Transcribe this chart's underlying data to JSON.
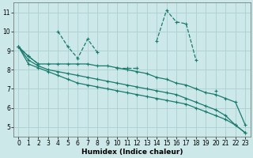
{
  "xlabel": "Humidex (Indice chaleur)",
  "background_color": "#cce8e8",
  "grid_color": "#aad0d0",
  "line_color": "#1a7a6e",
  "x_data": [
    0,
    1,
    2,
    3,
    4,
    5,
    6,
    7,
    8,
    9,
    10,
    11,
    12,
    13,
    14,
    15,
    16,
    17,
    18,
    19,
    20,
    21,
    22,
    23
  ],
  "series": [
    {
      "y": [
        9.2,
        8.7,
        8.3,
        null,
        10.0,
        9.2,
        8.6,
        9.6,
        8.9,
        null,
        8.1,
        8.1,
        8.1,
        null,
        9.5,
        11.1,
        10.5,
        10.4,
        8.5,
        null,
        6.9,
        null,
        null,
        null
      ],
      "linestyle": "--",
      "connect_gaps": false
    },
    {
      "y": [
        9.2,
        8.7,
        8.3,
        8.3,
        8.3,
        8.3,
        8.3,
        8.3,
        8.2,
        8.2,
        8.1,
        8.0,
        7.9,
        7.8,
        7.6,
        7.5,
        7.3,
        7.2,
        7.0,
        6.8,
        6.7,
        6.5,
        6.3,
        5.1
      ],
      "linestyle": "-",
      "connect_gaps": true
    },
    {
      "y": [
        9.2,
        8.5,
        8.2,
        8.0,
        7.9,
        7.8,
        7.7,
        7.6,
        7.5,
        7.4,
        7.3,
        7.2,
        7.1,
        7.0,
        6.9,
        6.8,
        6.7,
        6.5,
        6.3,
        6.1,
        5.9,
        5.6,
        5.1,
        4.7
      ],
      "linestyle": "-",
      "connect_gaps": true
    },
    {
      "y": [
        9.2,
        8.3,
        8.1,
        7.9,
        7.7,
        7.5,
        7.3,
        7.2,
        7.1,
        7.0,
        6.9,
        6.8,
        6.7,
        6.6,
        6.5,
        6.4,
        6.3,
        6.2,
        6.0,
        5.8,
        5.6,
        5.4,
        5.1,
        4.7
      ],
      "linestyle": "-",
      "connect_gaps": true
    }
  ],
  "ylim": [
    4.5,
    11.5
  ],
  "xlim": [
    -0.5,
    23.5
  ],
  "yticks": [
    5,
    6,
    7,
    8,
    9,
    10,
    11
  ],
  "xticks": [
    0,
    1,
    2,
    3,
    4,
    5,
    6,
    7,
    8,
    9,
    10,
    11,
    12,
    13,
    14,
    15,
    16,
    17,
    18,
    19,
    20,
    21,
    22,
    23
  ],
  "tick_fontsize": 5.5,
  "xlabel_fontsize": 6.5
}
